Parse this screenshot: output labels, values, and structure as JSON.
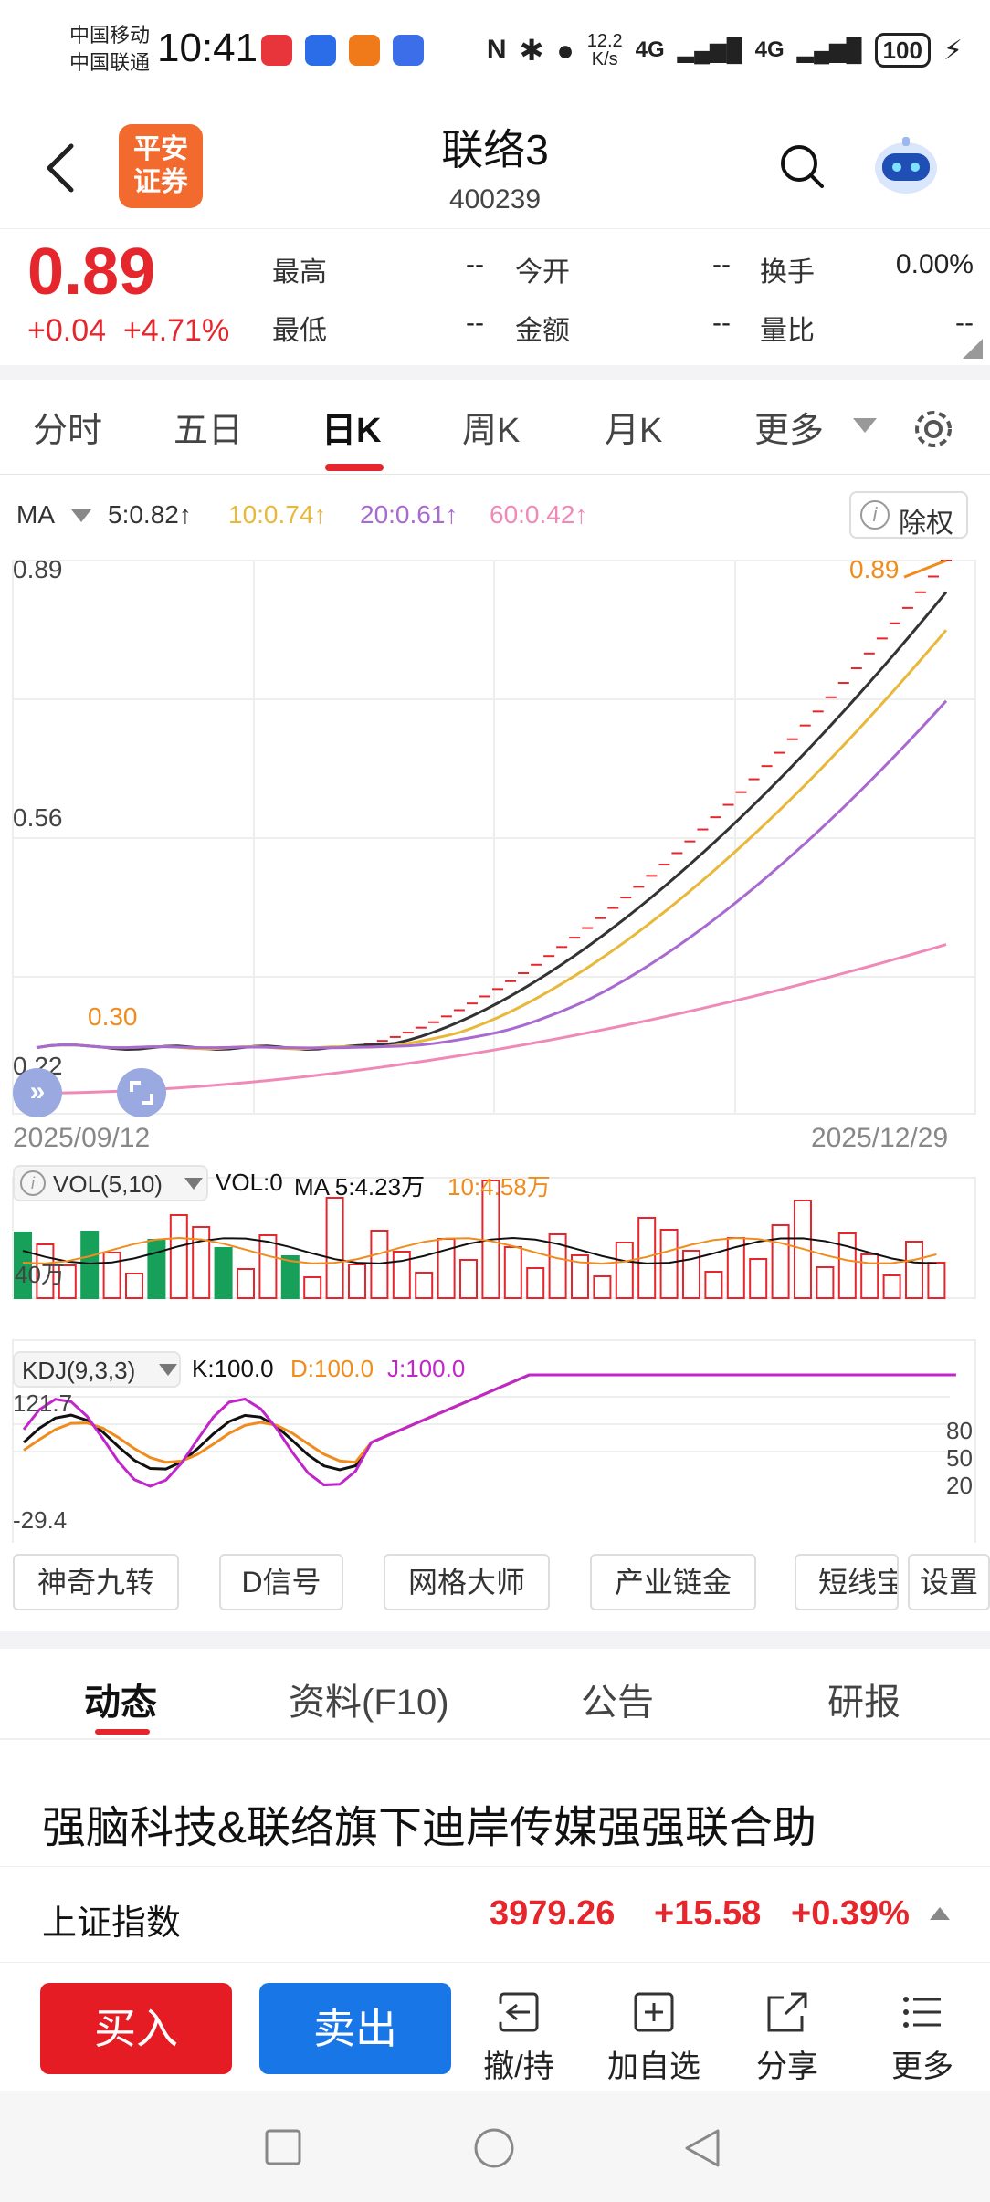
{
  "status": {
    "carrier1": "中国移动",
    "carrier2": "中国联通",
    "time": "10:41",
    "net_speed_value": "12.2",
    "net_speed_unit": "K/s",
    "signal1": "4G",
    "signal2": "4G",
    "battery": "100"
  },
  "header": {
    "logo_line1": "平安",
    "logo_line2": "证券",
    "name": "联络3",
    "code": "400239"
  },
  "quote": {
    "price": "0.89",
    "change": "+0.04",
    "change_pct": "+4.71%",
    "high_label": "最高",
    "high_value": "--",
    "low_label": "最低",
    "low_value": "--",
    "open_label": "今开",
    "open_value": "--",
    "amount_label": "金额",
    "amount_value": "--",
    "turnover_label": "换手",
    "turnover_value": "0.00%",
    "ratio_label": "量比",
    "ratio_value": "--"
  },
  "tabs": [
    {
      "label": "分时"
    },
    {
      "label": "五日"
    },
    {
      "label": "日K"
    },
    {
      "label": "周K"
    },
    {
      "label": "月K"
    },
    {
      "label": "更多"
    }
  ],
  "ma": {
    "label": "MA",
    "ma5": "5:0.82↑",
    "ma10": "10:0.74↑",
    "ma20": "20:0.61↑",
    "ma60": "60:0.42↑",
    "fuquan": "除权",
    "colors": {
      "ma5": "#333333",
      "ma10": "#e8b83a",
      "ma20": "#a86ad0",
      "ma60": "#ef8ab8"
    }
  },
  "chart": {
    "y_top": "0.89",
    "y_mid": "0.56",
    "y_bottom": "0.22",
    "last_label": "0.89",
    "low_label": "0.30",
    "date_start": "2025/09/12",
    "date_end": "2025/12/29"
  },
  "vol": {
    "label": "VOL(5,10)",
    "text1": "VOL:0",
    "text2": "MA 5:4.23万",
    "text3": "10:4.58万",
    "axis": "40万"
  },
  "kdj": {
    "label": "KDJ(9,3,3)",
    "k": "K:100.0",
    "d": "D:100.0",
    "j": "J:100.0",
    "top": "121.7",
    "bottom": "-29.4",
    "lvl80": "80",
    "lvl50": "50",
    "lvl20": "20"
  },
  "indicators": [
    "神奇九转",
    "D信号",
    "网格大师",
    "产业链金",
    "短线宝",
    "设置"
  ],
  "news_tabs": [
    "动态",
    "资料(F10)",
    "公告",
    "研报"
  ],
  "news_headline": "强脑科技&联络旗下迪岸传媒强强联合助",
  "index": {
    "name": "上证指数",
    "value": "3979.26",
    "change": "+15.58",
    "change_pct": "+0.39%"
  },
  "actions": {
    "buy": "买入",
    "sell": "卖出",
    "withdraw": "撤/持",
    "add_watch": "加自选",
    "share": "分享",
    "more": "更多"
  },
  "chart_data": {
    "type": "candlestick",
    "x_start": "2025/09/12",
    "x_end": "2025/12/29",
    "ylim": [
      0.22,
      0.89
    ],
    "ma_series": [
      {
        "name": "5",
        "last": 0.82
      },
      {
        "name": "10",
        "last": 0.74
      },
      {
        "name": "20",
        "last": 0.61
      },
      {
        "name": "60",
        "last": 0.42
      }
    ]
  }
}
